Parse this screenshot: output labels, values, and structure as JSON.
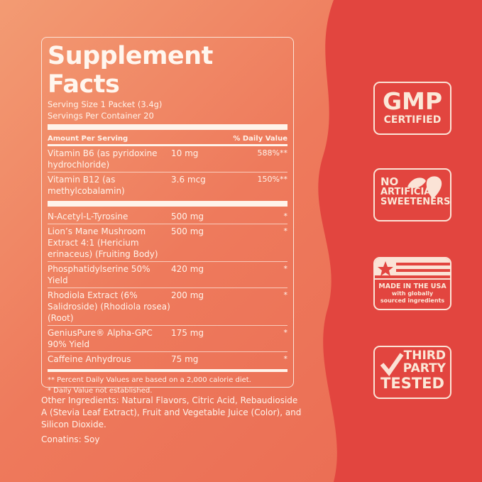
{
  "colors": {
    "left_bg": "#ef7c5e",
    "right_bg": "#e2453f",
    "text": "#fff3ea"
  },
  "label": {
    "title": "Supplement Facts",
    "serving_size": "Serving Size 1 Packet (3.4g)",
    "servings_per_container": "Servings Per Container 20",
    "header_left": "Amount Per Serving",
    "header_right": "% Daily Value",
    "vitamins": [
      {
        "name": "Vitamin B6 (as pyridoxine hydrochloride)",
        "amount": "10 mg",
        "dv": "588%**"
      },
      {
        "name": "Vitamin B12 (as methylcobalamin)",
        "amount": "3.6 mcg",
        "dv": "150%**"
      }
    ],
    "ingredients": [
      {
        "name": "N-Acetyl-L-Tyrosine",
        "amount": "500 mg",
        "dv": "*"
      },
      {
        "name": "Lion’s Mane Mushroom Extract 4:1 (Hericium erinaceus) (Fruiting Body)",
        "amount": "500 mg",
        "dv": "*"
      },
      {
        "name": "Phosphatidylserine 50% Yield",
        "amount": "420 mg",
        "dv": "*"
      },
      {
        "name": "Rhodiola Extract (6% Salidroside) (Rhodiola rosea) (Root)",
        "amount": "200 mg",
        "dv": "*"
      },
      {
        "name": "GeniusPure® Alpha-GPC 90% Yield",
        "amount": "175 mg",
        "dv": "*"
      },
      {
        "name": "Caffeine Anhydrous",
        "amount": "75 mg",
        "dv": "*"
      }
    ],
    "footnote_1": "** Percent Daily Values are based on a 2,000 calorie diet.",
    "footnote_2": "* Daily Value not established."
  },
  "other_ingredients": "Other Ingredients: Natural Flavors, Citric Acid, Rebaudioside A (Stevia Leaf Extract), Fruit and Vegetable Juice (Color), and Silicon Dioxide.",
  "contains": "Conatins: Soy",
  "badges": {
    "gmp": {
      "line1": "GMP",
      "line2": "CERTIFIED"
    },
    "no_artificial": {
      "line1": "NO",
      "line2": "ARTIFICIAL",
      "line3": "SWEETENERS",
      "icon": "leaf-icon"
    },
    "usa": {
      "line1": "MADE IN THE USA",
      "line2": "with globally",
      "line3": "sourced ingredients",
      "icon": "flag-icon"
    },
    "third_party": {
      "line1": "THIRD",
      "line2": "PARTY",
      "line3": "TESTED",
      "icon": "checkmark-icon"
    }
  }
}
